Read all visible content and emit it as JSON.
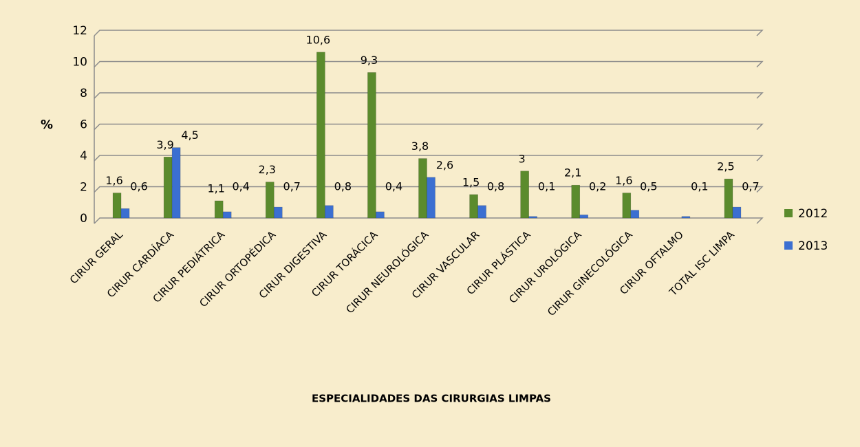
{
  "chart_data": {
    "type": "bar",
    "y_label": "%",
    "x_label": "ESPECIALIDADES DAS  CIRURGIAS LIMPAS",
    "categories": [
      "CIRUR GERAL",
      "CIRUR CARDÍACA",
      "CIRUR PEDIÁTRICA",
      "CIRUR ORTOPÉDICA",
      "CIRUR DIGESTIVA",
      "CIRUR TORÁCICA",
      "CIRUR NEUROLÓGICA",
      "CIRUR VASCULAR",
      "CIRUR PLÁSTICA",
      "CIRUR UROLÓGICA",
      "CIRUR GINECOLÓGICA",
      "CIRUR OFTALMO",
      "TOTAL ISC LIMPA"
    ],
    "series": [
      {
        "name": "2012",
        "color": "#5b8b2d",
        "values": [
          1.6,
          3.9,
          1.1,
          2.3,
          10.6,
          9.3,
          3.8,
          1.5,
          3,
          2.1,
          1.6,
          null,
          2.5
        ],
        "value_labels": [
          "1,6",
          "3,9",
          "1,1",
          "2,3",
          "10,6",
          "9,3",
          "3,8",
          "1,5",
          "3",
          "2,1",
          "1,6",
          null,
          "2,5"
        ]
      },
      {
        "name": "2013",
        "color": "#3b6fd1",
        "values": [
          0.6,
          4.5,
          0.4,
          0.7,
          0.8,
          0.4,
          2.6,
          0.8,
          0.1,
          0.2,
          0.5,
          0.1,
          0.7
        ],
        "value_labels": [
          "0,6",
          "4,5",
          "0,4",
          "0,7",
          "0,8",
          "0,4",
          "2,6",
          "0,8",
          "0,1",
          "0,2",
          "0,5",
          "0,1",
          "0,7"
        ]
      }
    ],
    "ylim": [
      0,
      12
    ],
    "yticks": [
      0,
      2,
      4,
      6,
      8,
      10,
      12
    ],
    "grid": true,
    "legend": "right"
  }
}
